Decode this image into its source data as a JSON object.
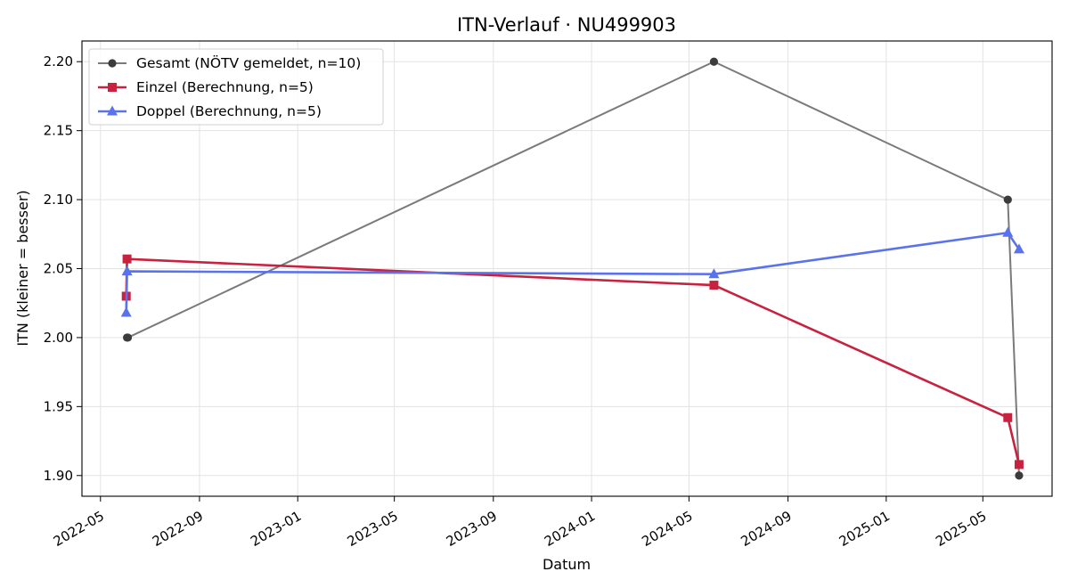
{
  "chart_data": {
    "type": "line",
    "title": "ITN-Verlauf · NU499903",
    "xlabel": "Datum",
    "ylabel": "ITN  (kleiner = besser)",
    "x_axis_type": "date",
    "xlim": [
      "2022-04-08",
      "2025-07-26"
    ],
    "ylim": [
      1.885,
      2.215
    ],
    "x_ticks": [
      "2022-05",
      "2022-09",
      "2023-01",
      "2023-05",
      "2023-09",
      "2024-01",
      "2024-05",
      "2024-09",
      "2025-01",
      "2025-05"
    ],
    "y_ticks": [
      "1.90",
      "1.95",
      "2.00",
      "2.05",
      "2.10",
      "2.15",
      "2.20"
    ],
    "grid": true,
    "legend_position": "top-left",
    "series": [
      {
        "name": "Gesamt (NÖTV gemeldet, n=10)",
        "color": "#7a7a7a",
        "marker_color": "#3b3b3b",
        "marker": "circle",
        "x": [
          "2022-06-03",
          "2022-06-04",
          "2024-06-01",
          "2025-06-01",
          "2025-06-15"
        ],
        "y": [
          2.0,
          2.0,
          2.2,
          2.1,
          1.9
        ]
      },
      {
        "name": "Einzel (Berechnung, n=5)",
        "color": "#c8223f",
        "marker": "square",
        "x": [
          "2022-06-02",
          "2022-06-03",
          "2024-06-01",
          "2025-06-01",
          "2025-06-15"
        ],
        "y": [
          2.03,
          2.057,
          2.038,
          1.942,
          1.908
        ]
      },
      {
        "name": "Doppel (Berechnung, n=5)",
        "color": "#5a72ee",
        "marker": "triangle",
        "x": [
          "2022-06-02",
          "2022-06-03",
          "2024-06-01",
          "2025-06-01",
          "2025-06-15"
        ],
        "y": [
          2.018,
          2.048,
          2.046,
          2.076,
          2.064
        ]
      }
    ]
  }
}
